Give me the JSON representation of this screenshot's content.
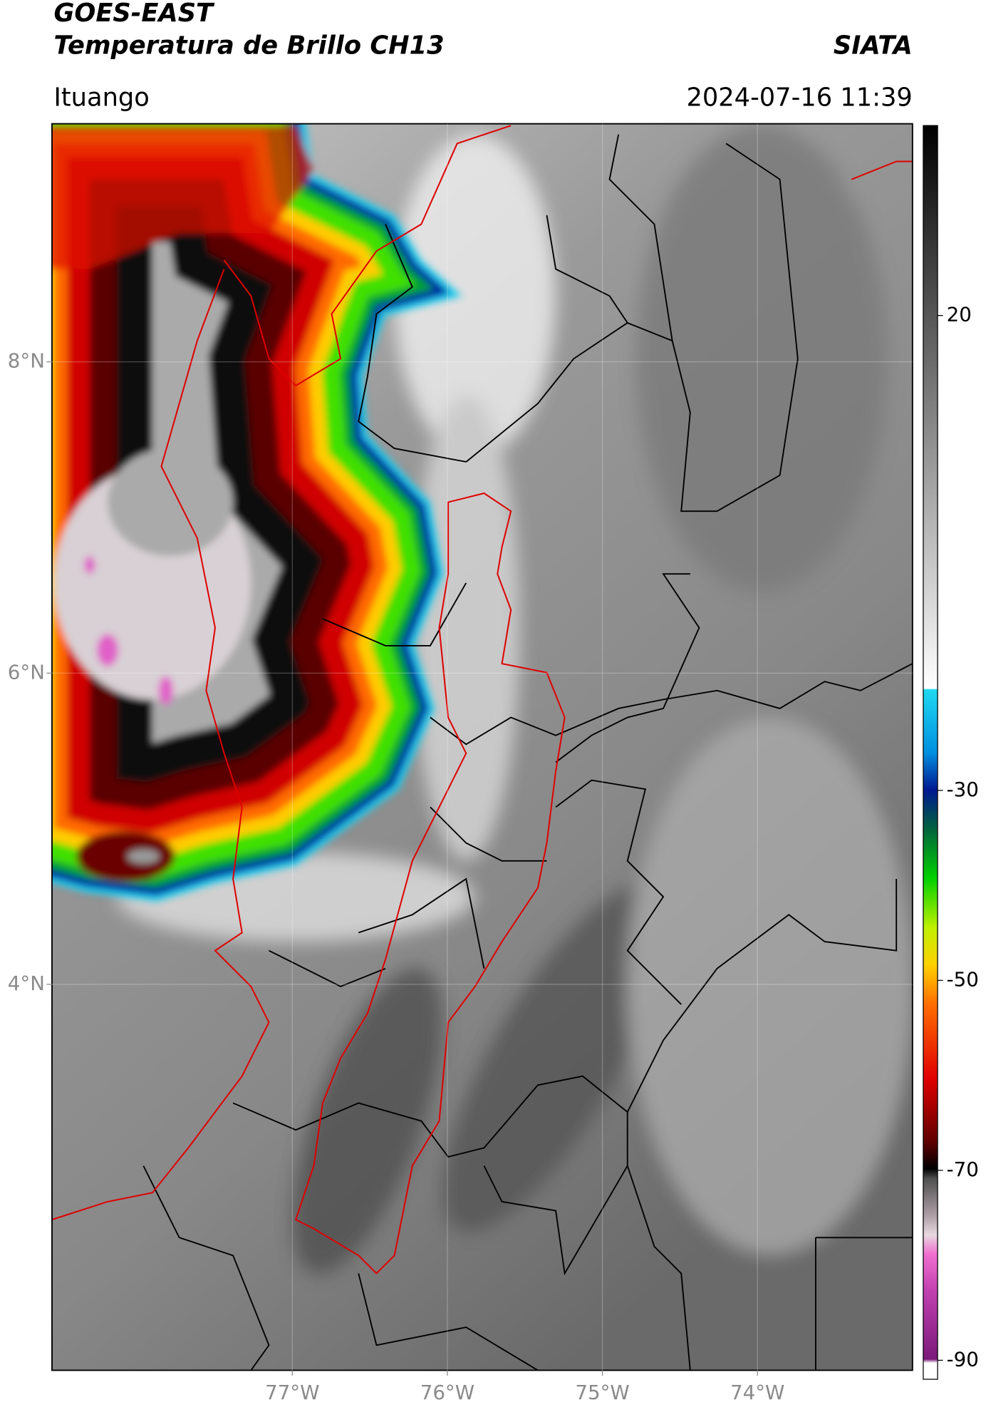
{
  "header": {
    "title": "GOES-EAST",
    "subtitle": "Temperatura de Brillo CH13",
    "source": "SIATA",
    "location": "Ituango",
    "datetime": "2024-07-16 11:39"
  },
  "map": {
    "xlim": [
      -78.55,
      -73.0
    ],
    "ylim": [
      1.52,
      9.53
    ],
    "xticks": [
      {
        "value": -77,
        "label": "77°W"
      },
      {
        "value": -76,
        "label": "76°W"
      },
      {
        "value": -75,
        "label": "75°W"
      },
      {
        "value": -74,
        "label": "74°W"
      }
    ],
    "yticks": [
      {
        "value": 8,
        "label": "8°N"
      },
      {
        "value": 6,
        "label": "6°N"
      },
      {
        "value": 4,
        "label": "4°N"
      }
    ]
  },
  "colorbar": {
    "lim": [
      -92,
      40
    ],
    "ticks": [
      20,
      -30,
      -50,
      -70,
      -90
    ]
  }
}
